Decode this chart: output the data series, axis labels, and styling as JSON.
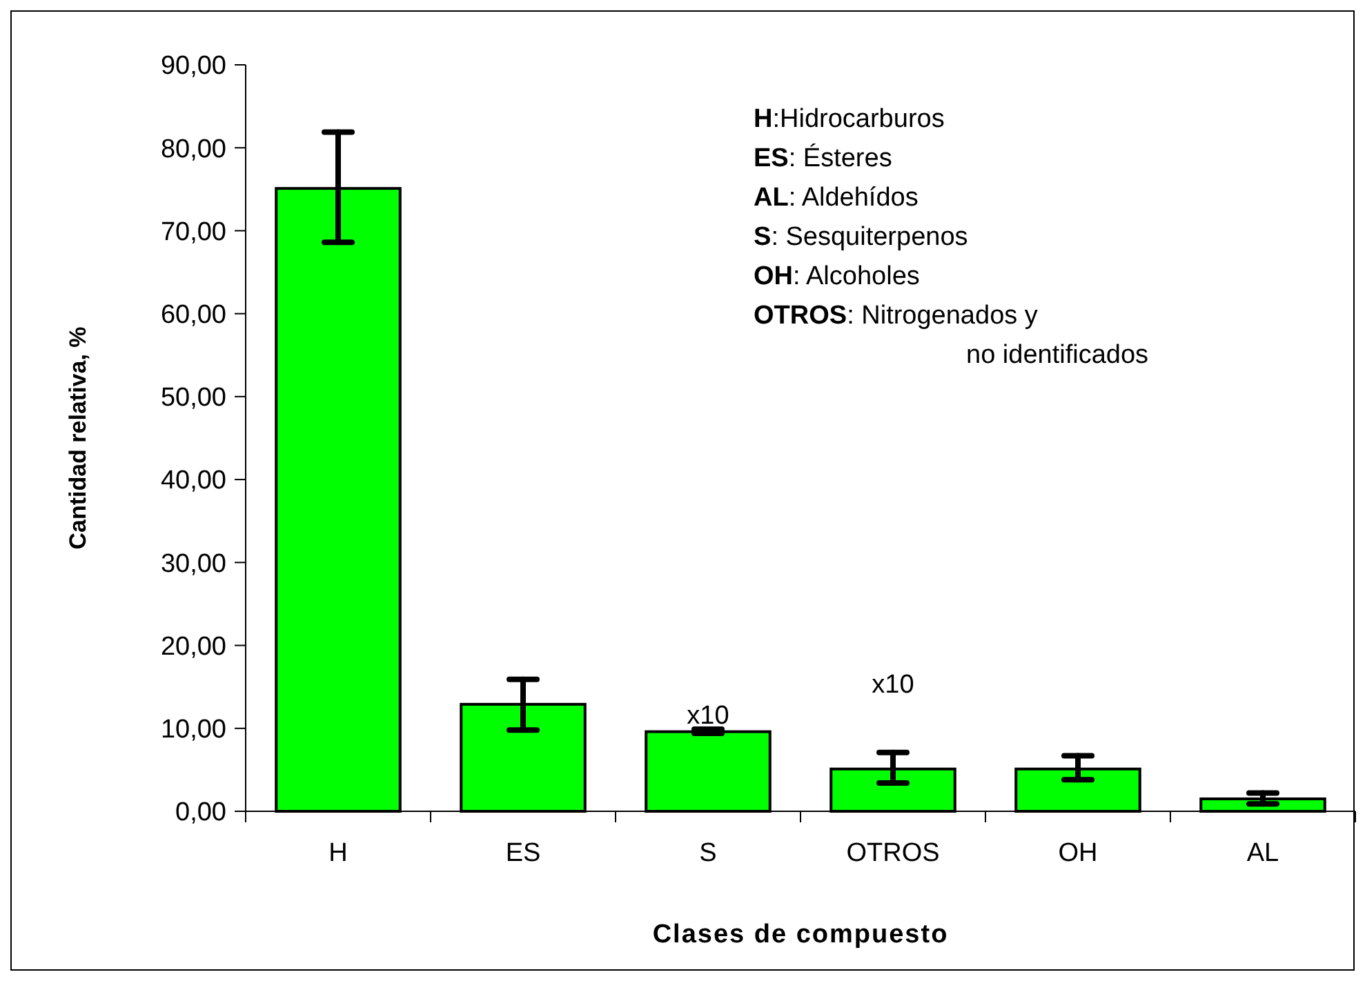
{
  "chart_data": {
    "type": "bar",
    "xlabel": "Clases de compuesto",
    "ylabel": "Cantidad relativa, %",
    "categories": [
      "H",
      "ES",
      "S",
      "OTROS",
      "OH",
      "AL"
    ],
    "values": [
      75.1,
      12.9,
      9.6,
      5.1,
      5.1,
      1.5
    ],
    "errors": [
      [
        68.6,
        81.9
      ],
      [
        9.8,
        15.9
      ],
      [
        9.4,
        9.9
      ],
      [
        3.4,
        7.1
      ],
      [
        3.8,
        6.7
      ],
      [
        0.9,
        2.2
      ]
    ],
    "color": "#00ff00",
    "ylim": [
      0,
      90
    ],
    "yticks": [
      {
        "value": 0,
        "label": "0,00"
      },
      {
        "value": 10,
        "label": "10,00"
      },
      {
        "value": 20,
        "label": "20,00"
      },
      {
        "value": 30,
        "label": "30,00"
      },
      {
        "value": 40,
        "label": "40,00"
      },
      {
        "value": 50,
        "label": "50,00"
      },
      {
        "value": 60,
        "label": "60,00"
      },
      {
        "value": 70,
        "label": "70,00"
      },
      {
        "value": 80,
        "label": "80,00"
      },
      {
        "value": 90,
        "label": "90,00"
      }
    ],
    "annotations": [
      {
        "text": "x10",
        "x": "S",
        "y": 10.6
      },
      "H:Hidrocarburos",
      "ES: Ésteres",
      "AL: Aldehídos",
      "S: Sesquiterpenos",
      "OH: Alcoholes",
      "OTROS: Nitrogenados y",
      "no identificados",
      "x10"
    ],
    "grid": false
  }
}
